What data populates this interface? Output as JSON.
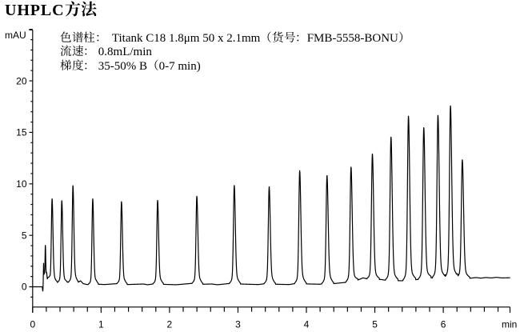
{
  "page": {
    "background": "#ffffff"
  },
  "title": {
    "full": "UHPLC方法",
    "latin": "UHPLC",
    "cjk": "方法"
  },
  "annotation": {
    "line1": {
      "full": "色谱柱：Titank C18 1.8μm 50 x 2.1mm（货号：FMB-5558-BONU）",
      "label_cjk": "色谱柱：",
      "column_latin": "Titank C18 1.8μm 50 x 2.1mm",
      "catalog_cjk": "（货号：",
      "catalog_latin": "FMB-5558-BONU",
      "close_cjk": "）"
    },
    "line2": {
      "full": "流速：0.8mL/min",
      "label_cjk": "流速：",
      "value_latin": "0.8mL/min"
    },
    "line3": {
      "full": "梯度：35-50% B（0-7 min)",
      "label_cjk": "梯度：",
      "value_latin": "35-50% B",
      "paren_cjk": "（",
      "range_latin": "0-7 min)"
    }
  },
  "chart_data": {
    "type": "line",
    "title": "UHPLC方法",
    "series_name": "UHPLC chromatogram trace",
    "xlabel": "min",
    "ylabel": "mAU",
    "xlim": [
      0,
      6.973
    ],
    "ylim": [
      -2,
      25
    ],
    "x_major_ticks": [
      0,
      1,
      2,
      3,
      4,
      5,
      6
    ],
    "x_tick_labels": [
      "0",
      "1",
      "2",
      "3",
      "4",
      "5",
      "6"
    ],
    "x_minor_step": 0.2,
    "y_major_ticks": [
      0,
      5,
      10,
      15,
      20
    ],
    "y_tick_labels": [
      "0",
      "5",
      "10",
      "15",
      "20"
    ],
    "y_minor_step": 1,
    "grid": false,
    "line_color": "#000000",
    "background": "#ffffff",
    "peak_width_model": {
      "sl0": 0.01,
      "sl1": 0.0006,
      "sr0": 0.0125,
      "sr1": 0.0009,
      "skirt_frac": 0.075,
      "skirt_mul_l": 2.7,
      "skirt_mul_r": 3.1
    },
    "peaks": [
      {
        "t": 0.186,
        "apex": 4.02,
        "sl": 0.0045,
        "sr": 0.005
      },
      {
        "t": 0.284,
        "apex": 8.54
      },
      {
        "t": 0.426,
        "apex": 8.36
      },
      {
        "t": 0.589,
        "apex": 9.82
      },
      {
        "t": 0.878,
        "apex": 8.54
      },
      {
        "t": 1.298,
        "apex": 8.27
      },
      {
        "t": 1.826,
        "apex": 8.39
      },
      {
        "t": 2.399,
        "apex": 8.79
      },
      {
        "t": 2.946,
        "apex": 9.84
      },
      {
        "t": 3.456,
        "apex": 9.71
      },
      {
        "t": 3.902,
        "apex": 11.27
      },
      {
        "t": 4.301,
        "apex": 10.8
      },
      {
        "t": 4.652,
        "apex": 11.63
      },
      {
        "t": 4.964,
        "apex": 12.9
      },
      {
        "t": 5.236,
        "apex": 14.54
      },
      {
        "t": 5.491,
        "apex": 16.57
      },
      {
        "t": 5.715,
        "apex": 15.45
      },
      {
        "t": 5.922,
        "apex": 16.65
      },
      {
        "t": 6.105,
        "apex": 17.57
      },
      {
        "t": 6.278,
        "apex": 12.33
      }
    ],
    "baseline": [
      [
        0.0,
        0.0
      ],
      [
        0.142,
        0.0
      ],
      [
        0.1465,
        -0.42
      ],
      [
        0.151,
        -0.38
      ],
      [
        0.1555,
        0.9
      ],
      [
        0.16,
        2.25
      ],
      [
        0.1645,
        1.15
      ],
      [
        0.172,
        1.2
      ],
      [
        0.178,
        1.05
      ],
      [
        0.194,
        1.0
      ],
      [
        0.2055,
        1.3
      ],
      [
        0.214,
        0.72
      ],
      [
        0.222,
        0.88
      ],
      [
        0.235,
        0.82
      ],
      [
        0.248,
        0.8
      ],
      [
        0.262,
        0.52
      ],
      [
        0.275,
        0.42
      ],
      [
        0.3,
        0.43
      ],
      [
        0.315,
        0.55
      ],
      [
        0.34,
        0.43
      ],
      [
        0.4,
        0.4
      ],
      [
        0.455,
        0.48
      ],
      [
        0.47,
        0.43
      ],
      [
        0.55,
        0.46
      ],
      [
        0.625,
        0.62
      ],
      [
        0.66,
        0.42
      ],
      [
        0.7,
        0.58
      ],
      [
        0.74,
        0.3
      ],
      [
        0.8,
        0.22
      ],
      [
        0.9,
        0.2
      ],
      [
        0.925,
        0.38
      ],
      [
        0.96,
        0.25
      ],
      [
        1.05,
        0.22
      ],
      [
        1.345,
        0.36
      ],
      [
        1.38,
        0.22
      ],
      [
        1.62,
        0.27
      ],
      [
        1.68,
        0.2
      ],
      [
        1.873,
        0.38
      ],
      [
        1.91,
        0.24
      ],
      [
        2.1,
        0.2
      ],
      [
        2.446,
        0.4
      ],
      [
        2.48,
        0.25
      ],
      [
        2.62,
        0.27
      ],
      [
        2.7,
        0.2
      ],
      [
        2.993,
        0.4
      ],
      [
        3.03,
        0.27
      ],
      [
        3.3,
        0.22
      ],
      [
        3.503,
        0.4
      ],
      [
        3.54,
        0.25
      ],
      [
        3.75,
        0.22
      ],
      [
        3.949,
        0.44
      ],
      [
        3.99,
        0.28
      ],
      [
        4.2,
        0.25
      ],
      [
        4.348,
        0.46
      ],
      [
        4.39,
        0.3
      ],
      [
        4.5,
        0.38
      ],
      [
        4.7,
        0.52
      ],
      [
        4.83,
        0.87
      ],
      [
        4.95,
        0.65
      ],
      [
        5.09,
        0.71
      ],
      [
        5.22,
        0.58
      ],
      [
        5.36,
        0.59
      ],
      [
        5.5,
        0.58
      ],
      [
        5.62,
        0.71
      ],
      [
        5.72,
        0.62
      ],
      [
        5.82,
        0.87
      ],
      [
        5.9,
        0.8
      ],
      [
        5.98,
        0.85
      ],
      [
        6.07,
        0.88
      ],
      [
        6.18,
        0.93
      ],
      [
        6.26,
        0.8
      ],
      [
        6.33,
        0.8
      ],
      [
        6.4,
        0.84
      ],
      [
        6.48,
        0.9
      ],
      [
        6.55,
        0.84
      ],
      [
        6.62,
        0.9
      ],
      [
        6.7,
        0.86
      ],
      [
        6.78,
        0.92
      ],
      [
        6.85,
        0.86
      ],
      [
        6.973,
        0.88
      ]
    ]
  }
}
